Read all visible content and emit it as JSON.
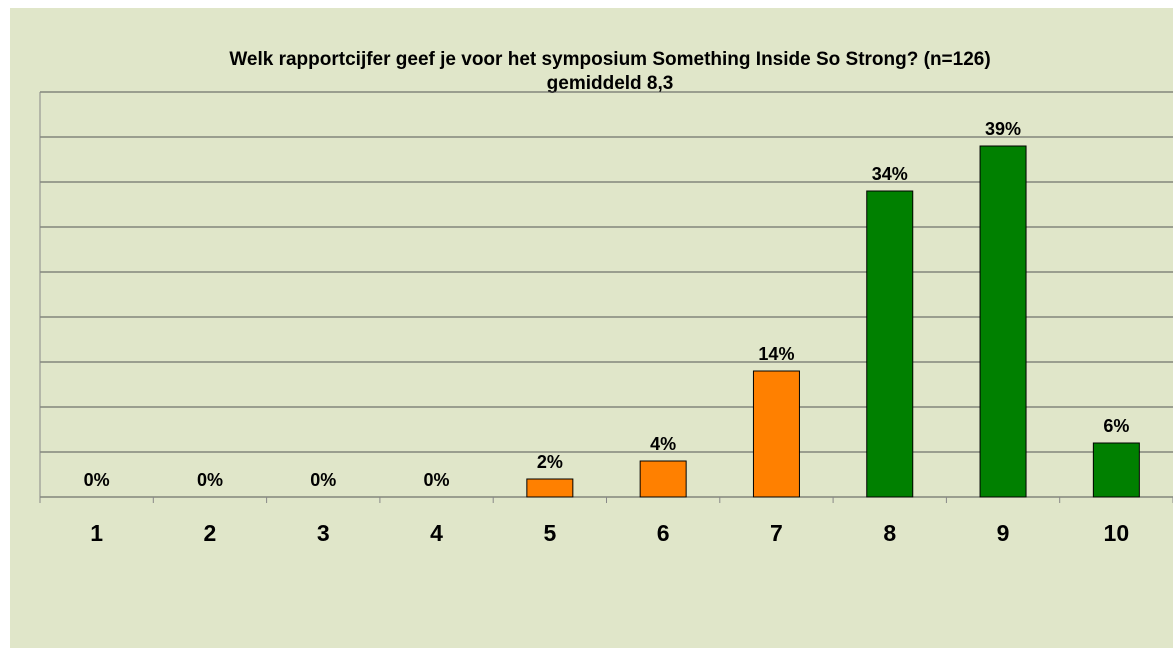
{
  "chart_data": {
    "type": "bar",
    "title": "Welk rapportcijfer geef je voor het symposium Something Inside So Strong? (n=126)",
    "subtitle": "gemiddeld 8,3",
    "categories": [
      "1",
      "2",
      "3",
      "4",
      "5",
      "6",
      "7",
      "8",
      "9",
      "10"
    ],
    "values": [
      0,
      0,
      0,
      0,
      2,
      4,
      14,
      34,
      39,
      6
    ],
    "value_labels": [
      "0%",
      "0%",
      "0%",
      "0%",
      "2%",
      "4%",
      "14%",
      "34%",
      "39%",
      "6%"
    ],
    "colors": [
      "#ff8000",
      "#ff8000",
      "#ff8000",
      "#ff8000",
      "#ff8000",
      "#ff8000",
      "#ff8000",
      "#008000",
      "#008000",
      "#008000"
    ],
    "ylim": [
      0,
      45
    ],
    "yticks": [
      0,
      5,
      10,
      15,
      20,
      25,
      30,
      35,
      40,
      45
    ],
    "grid": true
  }
}
